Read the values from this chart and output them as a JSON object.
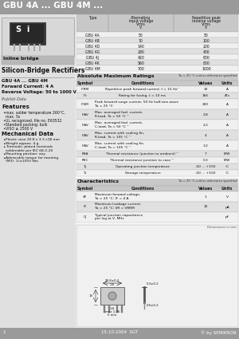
{
  "title": "GBU 4A ... GBU 4M ...",
  "title_bg": "#9a9a9a",
  "page_bg": "#c8c8c8",
  "left_bg": "#e0e0e0",
  "right_bg": "#f8f8f8",
  "img_box_bg": "#d8d8d8",
  "inline_label_bg": "#b8b8b8",
  "table_hdr_bg": "#c8c8c8",
  "table_row0": "#f0f0f0",
  "table_row1": "#e0e0e0",
  "footer_bg": "#9a9a9a",
  "type_rows": [
    [
      "GBU 4A",
      "50",
      "50"
    ],
    [
      "GBU 4B",
      "70",
      "100"
    ],
    [
      "GBU 4D",
      "140",
      "200"
    ],
    [
      "GBU 4G",
      "280",
      "400"
    ],
    [
      "GBU 4J",
      "420",
      "600"
    ],
    [
      "GBU 4K",
      "560",
      "800"
    ],
    [
      "GBU 4M",
      "700",
      "1000"
    ]
  ],
  "amr_rows": [
    [
      "IFRM",
      "Repetitive peak forward current; f = 15 Hz¹˙",
      "30",
      "A"
    ],
    [
      "I²t",
      "Rating for fusing, t = 10 ms",
      "166",
      "A²s"
    ],
    [
      "IFSM",
      "Peak forward surge current, 50 Hz half-sine-wave\nTa = 25 °C",
      "200",
      "A"
    ],
    [
      "IFAV",
      "Max. averaged fwd. current,\nR-load, Ta = 50 °C ¹˙",
      "2.8",
      "A"
    ],
    [
      "IFAV",
      "Max. averaged fwd. current,\nC-load, Ta = 50 °C ¹˙",
      "2.2",
      "A"
    ],
    [
      "IFAV",
      "Max. current with cooling fin,\nR-load, Ta = 105 °C ¹˙",
      "4",
      "A"
    ],
    [
      "IFAV",
      "Max. current with cooling fin,\nC-load, Ta = 105 °C ¹˙",
      "3.2",
      "A"
    ],
    [
      "RθA",
      "Thermal resistance (junction to ambient) ¹˙",
      "7",
      "K/W"
    ],
    [
      "RθC",
      "Thermal resistance junction to case ¹˙",
      "0.3",
      "K/W"
    ],
    [
      "Tj",
      "Operating junction temperature",
      "-50 ... +150",
      "°C"
    ],
    [
      "Ts",
      "Storage temperature",
      "-50 ... +150",
      "°C"
    ]
  ],
  "char_rows": [
    [
      "VF",
      "Maximum forward voltage,\nTa = 25 °C; IF = 4 A",
      "1",
      "V"
    ],
    [
      "IR",
      "Maximum Leakage current,\nTa = 25 °C; VR = VRRM",
      "10",
      "μA"
    ],
    [
      "CJ",
      "Typical junction capacitance\nper leg at V, MHz",
      "",
      "pF"
    ]
  ]
}
